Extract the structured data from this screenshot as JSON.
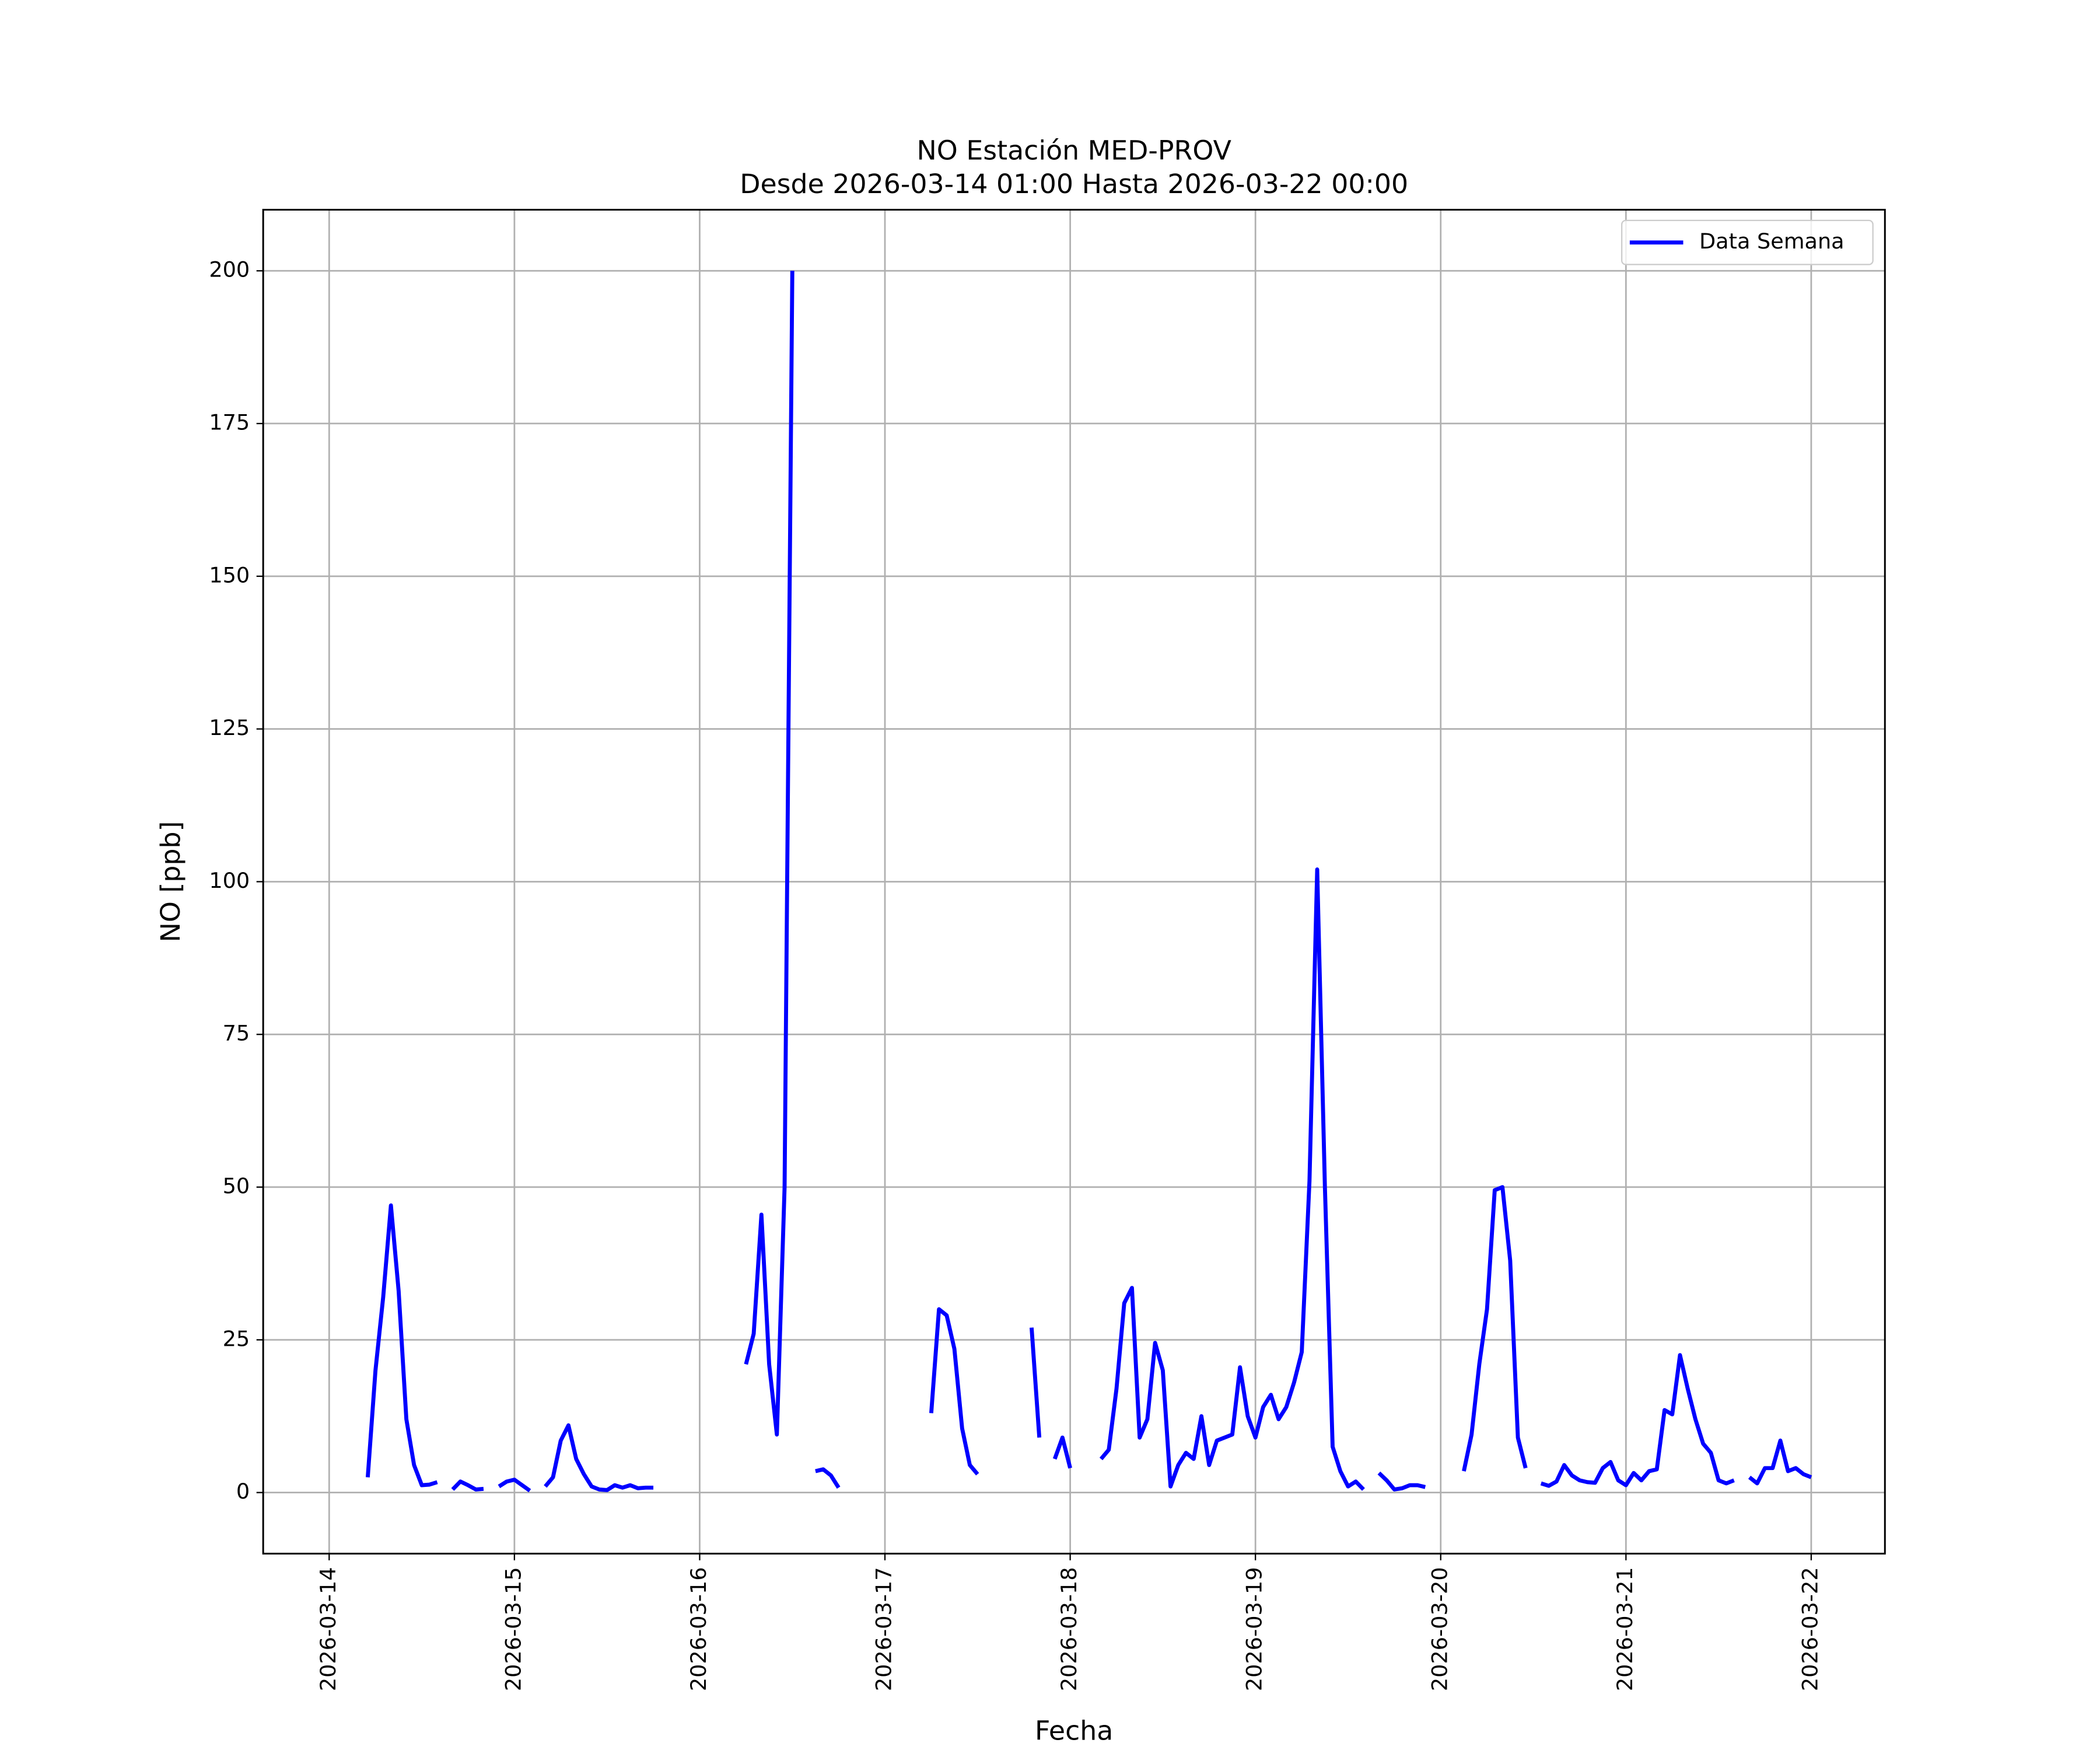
{
  "chart_data": {
    "type": "line",
    "title": "NO Estación MED-PROV",
    "subtitle": "Desde 2026-03-14 01:00 Hasta 2026-03-22 00:00",
    "x_label": "Fecha",
    "y_label": "NO [ppb]",
    "xlim": [
      "2026-03-13 15:27",
      "2026-03-22 09:33"
    ],
    "xticks": [
      "2026-03-14",
      "2026-03-15",
      "2026-03-16",
      "2026-03-17",
      "2026-03-18",
      "2026-03-19",
      "2026-03-20",
      "2026-03-21",
      "2026-03-22"
    ],
    "ylim": [
      -10,
      210
    ],
    "yticks": [
      0,
      25,
      50,
      75,
      100,
      125,
      150,
      175,
      200
    ],
    "grid": true,
    "legend": "upper right",
    "x": [
      "2026-03-14 01:00",
      "2026-03-14 02:00",
      "2026-03-14 03:00",
      "2026-03-14 04:00",
      "2026-03-14 05:00",
      "2026-03-14 06:00",
      "2026-03-14 07:00",
      "2026-03-14 08:00",
      "2026-03-14 09:00",
      "2026-03-14 10:00",
      "2026-03-14 11:00",
      "2026-03-14 12:00",
      "2026-03-14 13:00",
      "2026-03-14 14:00",
      "2026-03-14 15:00",
      "2026-03-14 16:00",
      "2026-03-14 17:00",
      "2026-03-14 18:00",
      "2026-03-14 19:00",
      "2026-03-14 20:00",
      "2026-03-14 21:00",
      "2026-03-14 22:00",
      "2026-03-14 23:00",
      "2026-03-15 00:00",
      "2026-03-15 01:00",
      "2026-03-15 02:00",
      "2026-03-15 03:00",
      "2026-03-15 04:00",
      "2026-03-15 05:00",
      "2026-03-15 06:00",
      "2026-03-15 07:00",
      "2026-03-15 08:00",
      "2026-03-15 09:00",
      "2026-03-15 10:00",
      "2026-03-15 11:00",
      "2026-03-15 12:00",
      "2026-03-15 13:00",
      "2026-03-15 14:00",
      "2026-03-15 15:00",
      "2026-03-15 16:00",
      "2026-03-15 17:00",
      "2026-03-15 18:00",
      "2026-03-15 19:00",
      "2026-03-15 20:00",
      "2026-03-15 21:00",
      "2026-03-15 22:00",
      "2026-03-15 23:00",
      "2026-03-16 00:00",
      "2026-03-16 01:00",
      "2026-03-16 02:00",
      "2026-03-16 03:00",
      "2026-03-16 04:00",
      "2026-03-16 05:00",
      "2026-03-16 06:00",
      "2026-03-16 07:00",
      "2026-03-16 08:00",
      "2026-03-16 09:00",
      "2026-03-16 10:00",
      "2026-03-16 11:00",
      "2026-03-16 12:00",
      "2026-03-16 13:00",
      "2026-03-16 14:00",
      "2026-03-16 15:00",
      "2026-03-16 16:00",
      "2026-03-16 17:00",
      "2026-03-16 18:00",
      "2026-03-16 19:00",
      "2026-03-16 20:00",
      "2026-03-16 21:00",
      "2026-03-16 22:00",
      "2026-03-16 23:00",
      "2026-03-17 00:00",
      "2026-03-17 01:00",
      "2026-03-17 02:00",
      "2026-03-17 03:00",
      "2026-03-17 04:00",
      "2026-03-17 05:00",
      "2026-03-17 06:00",
      "2026-03-17 07:00",
      "2026-03-17 08:00",
      "2026-03-17 09:00",
      "2026-03-17 10:00",
      "2026-03-17 11:00",
      "2026-03-17 12:00",
      "2026-03-17 13:00",
      "2026-03-17 14:00",
      "2026-03-17 15:00",
      "2026-03-17 16:00",
      "2026-03-17 17:00",
      "2026-03-17 18:00",
      "2026-03-17 19:00",
      "2026-03-17 20:00",
      "2026-03-17 21:00",
      "2026-03-17 22:00",
      "2026-03-17 23:00",
      "2026-03-18 00:00",
      "2026-03-18 01:00",
      "2026-03-18 02:00",
      "2026-03-18 03:00",
      "2026-03-18 04:00",
      "2026-03-18 05:00",
      "2026-03-18 06:00",
      "2026-03-18 07:00",
      "2026-03-18 08:00",
      "2026-03-18 09:00",
      "2026-03-18 10:00",
      "2026-03-18 11:00",
      "2026-03-18 12:00",
      "2026-03-18 13:00",
      "2026-03-18 14:00",
      "2026-03-18 15:00",
      "2026-03-18 16:00",
      "2026-03-18 17:00",
      "2026-03-18 18:00",
      "2026-03-18 19:00",
      "2026-03-18 20:00",
      "2026-03-18 21:00",
      "2026-03-18 22:00",
      "2026-03-18 23:00",
      "2026-03-19 00:00",
      "2026-03-19 01:00",
      "2026-03-19 02:00",
      "2026-03-19 03:00",
      "2026-03-19 04:00",
      "2026-03-19 05:00",
      "2026-03-19 06:00",
      "2026-03-19 07:00",
      "2026-03-19 08:00",
      "2026-03-19 09:00",
      "2026-03-19 10:00",
      "2026-03-19 11:00",
      "2026-03-19 12:00",
      "2026-03-19 13:00",
      "2026-03-19 14:00",
      "2026-03-19 15:00",
      "2026-03-19 16:00",
      "2026-03-19 17:00",
      "2026-03-19 18:00",
      "2026-03-19 19:00",
      "2026-03-19 20:00",
      "2026-03-19 21:00",
      "2026-03-19 22:00",
      "2026-03-19 23:00",
      "2026-03-20 00:00",
      "2026-03-20 01:00",
      "2026-03-20 02:00",
      "2026-03-20 03:00",
      "2026-03-20 04:00",
      "2026-03-20 05:00",
      "2026-03-20 06:00",
      "2026-03-20 07:00",
      "2026-03-20 08:00",
      "2026-03-20 09:00",
      "2026-03-20 10:00",
      "2026-03-20 11:00",
      "2026-03-20 12:00",
      "2026-03-20 13:00",
      "2026-03-20 14:00",
      "2026-03-20 15:00",
      "2026-03-20 16:00",
      "2026-03-20 17:00",
      "2026-03-20 18:00",
      "2026-03-20 19:00",
      "2026-03-20 20:00",
      "2026-03-20 21:00",
      "2026-03-20 22:00",
      "2026-03-20 23:00",
      "2026-03-21 00:00",
      "2026-03-21 01:00",
      "2026-03-21 02:00",
      "2026-03-21 03:00",
      "2026-03-21 04:00",
      "2026-03-21 05:00",
      "2026-03-21 06:00",
      "2026-03-21 07:00",
      "2026-03-21 08:00",
      "2026-03-21 09:00",
      "2026-03-21 10:00",
      "2026-03-21 11:00",
      "2026-03-21 12:00",
      "2026-03-21 13:00",
      "2026-03-21 14:00",
      "2026-03-21 15:00",
      "2026-03-21 16:00",
      "2026-03-21 17:00",
      "2026-03-21 18:00",
      "2026-03-21 19:00",
      "2026-03-21 20:00",
      "2026-03-21 21:00",
      "2026-03-21 22:00",
      "2026-03-21 23:00",
      "2026-03-22 00:00"
    ],
    "series": [
      {
        "name": "Data Semana",
        "color": "#0000ff",
        "values": [
          null,
          null,
          null,
          null,
          2.5,
          20,
          32,
          47,
          33,
          12,
          4.5,
          1.2,
          1.3,
          1.7,
          null,
          0.5,
          1.8,
          1.2,
          0.5,
          0.6,
          null,
          1,
          1.8,
          2.1,
          1.2,
          0.3,
          null,
          1,
          2.5,
          8.5,
          11,
          5.5,
          3,
          1,
          0.5,
          0.4,
          1.2,
          0.8,
          1.2,
          0.7,
          0.8,
          0.8,
          null,
          null,
          null,
          null,
          null,
          null,
          null,
          null,
          null,
          null,
          null,
          21,
          26,
          45.5,
          21,
          9.5,
          50,
          200,
          null,
          null,
          3.5,
          3.8,
          2.8,
          0.8,
          null,
          null,
          null,
          null,
          null,
          null,
          null,
          null,
          null,
          null,
          null,
          13,
          30,
          29,
          23.5,
          10.5,
          4.5,
          3,
          null,
          null,
          null,
          null,
          null,
          null,
          27,
          9,
          null,
          5.5,
          9,
          4,
          null,
          null,
          null,
          5.5,
          7,
          17,
          31,
          33.5,
          9,
          12,
          24.5,
          20,
          1,
          4.5,
          6.5,
          5.5,
          12.5,
          4.5,
          8.5,
          9,
          9.5,
          20.5,
          12.5,
          9,
          14,
          16,
          12,
          14,
          18,
          23,
          51,
          102,
          50,
          7.5,
          3.5,
          1,
          1.8,
          0.5,
          null,
          3.2,
          2,
          0.5,
          0.7,
          1.2,
          1.2,
          0.9,
          null,
          null,
          null,
          null,
          3.5,
          9.5,
          21,
          30,
          49.5,
          50,
          38,
          9,
          4,
          null,
          1.5,
          1.1,
          1.8,
          4.5,
          2.8,
          2,
          1.7,
          1.6,
          4,
          5,
          2,
          1.2,
          3.2,
          2,
          3.5,
          3.8,
          13.5,
          12.8,
          22.5,
          17,
          12,
          8,
          6.5,
          2,
          1.5,
          2,
          null,
          2.5,
          1.5,
          4,
          4,
          8.5,
          3.5,
          4,
          3,
          2.5
        ]
      }
    ]
  }
}
